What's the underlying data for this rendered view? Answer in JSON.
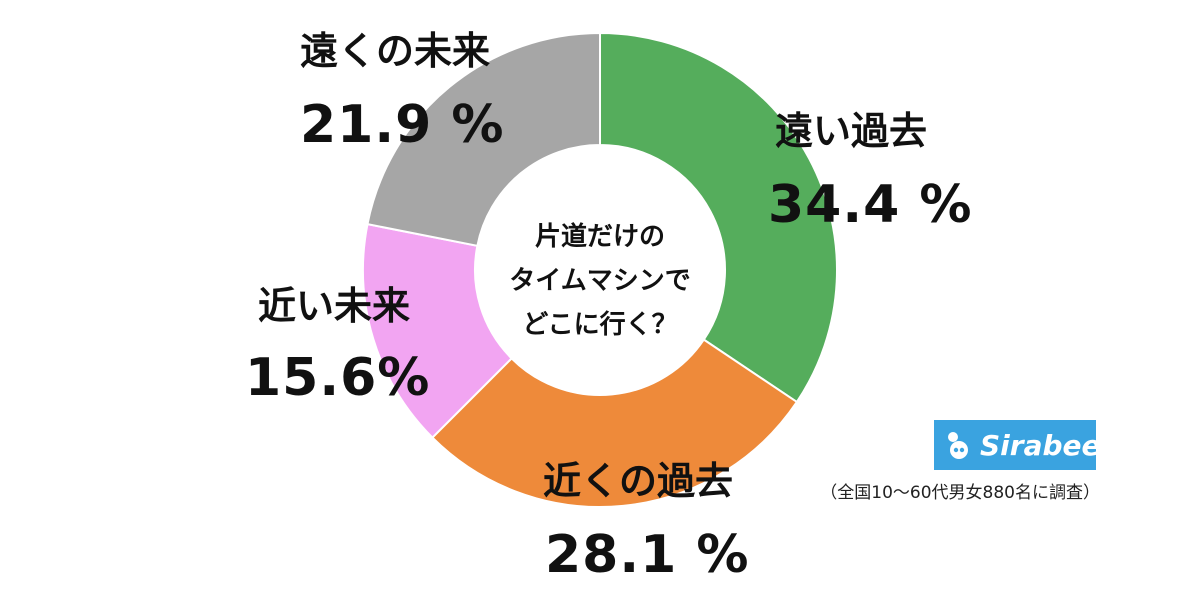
{
  "chart_data": {
    "type": "pie",
    "title": "",
    "center_text": [
      "片道だけの",
      "タイムマシンで",
      "どこに行く？"
    ],
    "categories": [
      "遠い過去",
      "近くの過去",
      "近い未来",
      "遠くの未来"
    ],
    "values": [
      34.4,
      28.1,
      15.6,
      21.9
    ],
    "value_labels": [
      "34.4 %",
      "28.1 %",
      "15.6%",
      "21.9 %"
    ],
    "colors": [
      "#55ad5c",
      "#ee8a3a",
      "#f2a5f2",
      "#a6a6a6"
    ]
  },
  "logo": {
    "text": "Sirabee",
    "color": "#3aa3e0"
  },
  "note": "（全国10〜60代男女880名に調査）"
}
